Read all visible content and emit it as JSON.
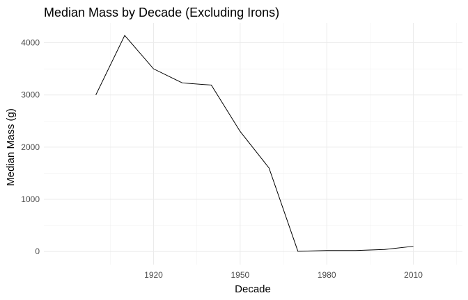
{
  "chart_data": {
    "type": "line",
    "title": "Median Mass by Decade (Excluding Irons)",
    "xlabel": "Decade",
    "ylabel": "Median Mass (g)",
    "x": [
      1900,
      1910,
      1920,
      1930,
      1940,
      1950,
      1960,
      1970,
      1980,
      1990,
      2000,
      2010
    ],
    "series": [
      {
        "values": [
          3000,
          4140,
          3500,
          3230,
          3190,
          2300,
          1600,
          5,
          20,
          20,
          40,
          100
        ]
      }
    ],
    "xlim": [
      1882,
      2027
    ],
    "ylim": [
      -250,
      4380
    ],
    "x_ticks": [
      1920,
      1950,
      1980,
      2010
    ],
    "x_tick_labels": [
      "1920",
      "1950",
      "1980",
      "2010"
    ],
    "y_ticks": [
      0,
      1000,
      2000,
      3000,
      4000
    ],
    "y_tick_labels": [
      "0",
      "1000",
      "2000",
      "3000",
      "4000"
    ],
    "line_color": "#000000",
    "grid": true,
    "legend": "none"
  }
}
